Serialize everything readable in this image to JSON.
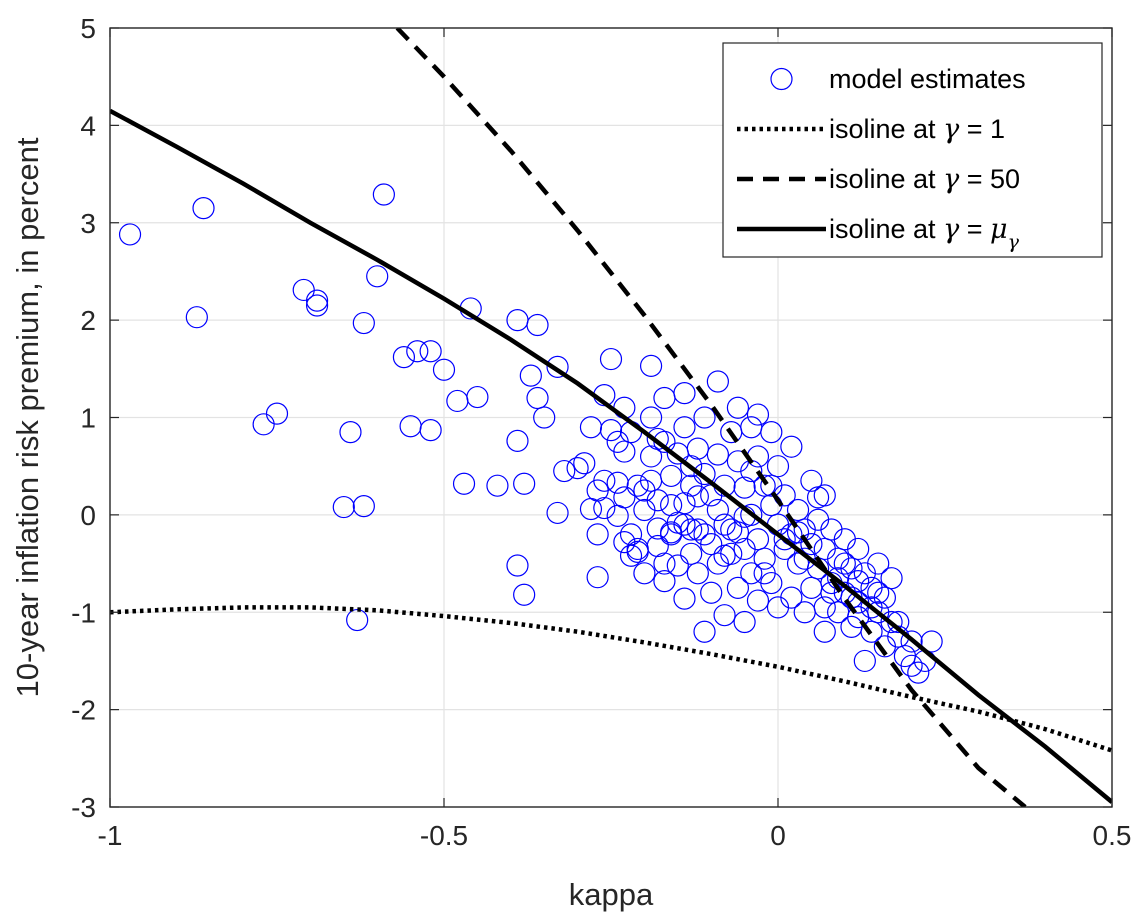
{
  "chart_data": {
    "type": "scatter",
    "title": "",
    "xlabel": "kappa",
    "ylabel": "10-year inflation risk premium, in percent",
    "xlim": [
      -1,
      0.5
    ],
    "ylim": [
      -3,
      5
    ],
    "x_ticks": [
      -1,
      -0.5,
      0,
      0.5
    ],
    "x_tick_labels": [
      "-1",
      "-0.5",
      "0",
      "0.5"
    ],
    "y_ticks": [
      -3,
      -2,
      -1,
      0,
      1,
      2,
      3,
      4,
      5
    ],
    "y_tick_labels": [
      "-3",
      "-2",
      "-1",
      "0",
      "1",
      "2",
      "3",
      "4",
      "5"
    ],
    "grid": true,
    "legend_position": "top-right",
    "colors": {
      "scatter": "#0000ff",
      "lines": "#000000",
      "grid": "#e3e3e3",
      "axis": "#262626"
    },
    "legend": [
      {
        "marker": "circle",
        "text": "model estimates"
      },
      {
        "marker": "dotted-line",
        "text": "isoline at ",
        "math": "γ",
        "suffix": " = 1"
      },
      {
        "marker": "dashed-line",
        "text": "isoline at ",
        "math": "γ",
        "suffix": " = 50"
      },
      {
        "marker": "solid-line",
        "text": "isoline at ",
        "math": "γ",
        "suffix": " = ",
        "math2": "μ",
        "subscript": "γ"
      }
    ],
    "series": [
      {
        "name": "model estimates",
        "type": "scatter",
        "marker": "circle",
        "points": [
          [
            -0.97,
            2.88
          ],
          [
            -0.86,
            3.15
          ],
          [
            -0.87,
            2.03
          ],
          [
            -0.77,
            0.93
          ],
          [
            -0.75,
            1.04
          ],
          [
            -0.71,
            2.31
          ],
          [
            -0.69,
            2.2
          ],
          [
            -0.69,
            2.15
          ],
          [
            -0.65,
            0.08
          ],
          [
            -0.64,
            0.85
          ],
          [
            -0.63,
            -1.08
          ],
          [
            -0.62,
            0.09
          ],
          [
            -0.62,
            1.97
          ],
          [
            -0.6,
            2.45
          ],
          [
            -0.59,
            3.29
          ],
          [
            -0.56,
            1.62
          ],
          [
            -0.55,
            0.91
          ],
          [
            -0.54,
            1.68
          ],
          [
            -0.52,
            1.68
          ],
          [
            -0.52,
            0.87
          ],
          [
            -0.5,
            1.49
          ],
          [
            -0.48,
            1.17
          ],
          [
            -0.47,
            0.32
          ],
          [
            -0.46,
            2.12
          ],
          [
            -0.45,
            1.21
          ],
          [
            -0.42,
            0.3
          ],
          [
            -0.39,
            2.0
          ],
          [
            -0.39,
            0.76
          ],
          [
            -0.39,
            -0.52
          ],
          [
            -0.38,
            -0.82
          ],
          [
            -0.38,
            0.32
          ],
          [
            -0.37,
            1.43
          ],
          [
            -0.36,
            1.95
          ],
          [
            -0.36,
            1.2
          ],
          [
            -0.35,
            1.0
          ],
          [
            -0.33,
            1.52
          ],
          [
            -0.33,
            0.02
          ],
          [
            -0.32,
            0.45
          ],
          [
            -0.3,
            0.48
          ],
          [
            -0.29,
            0.53
          ],
          [
            -0.28,
            0.06
          ],
          [
            -0.28,
            0.9
          ],
          [
            -0.27,
            0.25
          ],
          [
            -0.27,
            -0.64
          ],
          [
            -0.27,
            -0.2
          ],
          [
            -0.26,
            1.23
          ],
          [
            -0.26,
            0.07
          ],
          [
            -0.25,
            0.87
          ],
          [
            -0.25,
            1.6
          ],
          [
            -0.24,
            0.75
          ],
          [
            -0.24,
            0.33
          ],
          [
            -0.24,
            -0.01
          ],
          [
            -0.23,
            1.1
          ],
          [
            -0.23,
            0.65
          ],
          [
            -0.23,
            0.18
          ],
          [
            -0.22,
            0.85
          ],
          [
            -0.22,
            -0.2
          ],
          [
            -0.22,
            -0.42
          ],
          [
            -0.21,
            0.3
          ],
          [
            -0.21,
            -0.38
          ],
          [
            -0.2,
            0.05
          ],
          [
            -0.2,
            0.25
          ],
          [
            -0.2,
            -0.6
          ],
          [
            -0.19,
            1.53
          ],
          [
            -0.19,
            1.0
          ],
          [
            -0.19,
            0.6
          ],
          [
            -0.18,
            0.78
          ],
          [
            -0.18,
            0.15
          ],
          [
            -0.18,
            -0.14
          ],
          [
            -0.18,
            -0.32
          ],
          [
            -0.17,
            1.2
          ],
          [
            -0.17,
            0.75
          ],
          [
            -0.17,
            -0.68
          ],
          [
            -0.16,
            0.4
          ],
          [
            -0.16,
            0.1
          ],
          [
            -0.16,
            -0.2
          ],
          [
            -0.15,
            0.63
          ],
          [
            -0.15,
            -0.52
          ],
          [
            -0.14,
            1.25
          ],
          [
            -0.14,
            0.9
          ],
          [
            -0.14,
            -0.1
          ],
          [
            -0.14,
            -0.86
          ],
          [
            -0.13,
            0.5
          ],
          [
            -0.13,
            0.3
          ],
          [
            -0.13,
            -0.15
          ],
          [
            -0.13,
            -0.4
          ],
          [
            -0.12,
            0.68
          ],
          [
            -0.12,
            0.19
          ],
          [
            -0.12,
            -0.6
          ],
          [
            -0.11,
            1.0
          ],
          [
            -0.11,
            0.42
          ],
          [
            -0.11,
            -0.2
          ],
          [
            -0.11,
            -1.2
          ],
          [
            -0.1,
            0.2
          ],
          [
            -0.1,
            -0.3
          ],
          [
            -0.1,
            -0.8
          ],
          [
            -0.09,
            1.37
          ],
          [
            -0.09,
            0.62
          ],
          [
            -0.09,
            0.05
          ],
          [
            -0.09,
            -0.5
          ],
          [
            -0.08,
            0.3
          ],
          [
            -0.08,
            -0.1
          ],
          [
            -0.08,
            -1.03
          ],
          [
            -0.07,
            0.85
          ],
          [
            -0.07,
            -0.4
          ],
          [
            -0.06,
            1.1
          ],
          [
            -0.06,
            0.55
          ],
          [
            -0.06,
            -0.18
          ],
          [
            -0.06,
            -0.75
          ],
          [
            -0.05,
            0.28
          ],
          [
            -0.05,
            -0.35
          ],
          [
            -0.05,
            -1.1
          ],
          [
            -0.04,
            0.9
          ],
          [
            -0.04,
            0.45
          ],
          [
            -0.04,
            0.0
          ],
          [
            -0.04,
            -0.6
          ],
          [
            -0.03,
            1.03
          ],
          [
            -0.03,
            0.6
          ],
          [
            -0.03,
            -0.25
          ],
          [
            -0.03,
            -0.88
          ],
          [
            -0.02,
            0.3
          ],
          [
            -0.02,
            -0.45
          ],
          [
            -0.01,
            0.85
          ],
          [
            -0.01,
            0.1
          ],
          [
            -0.01,
            -0.7
          ],
          [
            0.0,
            0.5
          ],
          [
            0.0,
            -0.1
          ],
          [
            0.0,
            -0.95
          ],
          [
            0.01,
            0.2
          ],
          [
            0.01,
            -0.35
          ],
          [
            0.02,
            0.7
          ],
          [
            0.02,
            -0.2
          ],
          [
            0.02,
            -0.85
          ],
          [
            0.03,
            0.05
          ],
          [
            0.03,
            -0.5
          ],
          [
            0.04,
            -0.15
          ],
          [
            0.04,
            -1.0
          ],
          [
            0.05,
            0.35
          ],
          [
            0.05,
            -0.3
          ],
          [
            0.05,
            -0.75
          ],
          [
            0.06,
            -0.05
          ],
          [
            0.06,
            -0.55
          ],
          [
            0.07,
            0.2
          ],
          [
            0.07,
            -0.35
          ],
          [
            0.07,
            -1.2
          ],
          [
            0.08,
            -0.15
          ],
          [
            0.08,
            -0.7
          ],
          [
            0.09,
            -0.45
          ],
          [
            0.09,
            -1.0
          ],
          [
            0.1,
            -0.25
          ],
          [
            0.1,
            -0.8
          ],
          [
            0.11,
            -0.55
          ],
          [
            0.11,
            -1.15
          ],
          [
            0.12,
            -0.35
          ],
          [
            0.12,
            -0.9
          ],
          [
            0.13,
            -0.6
          ],
          [
            0.13,
            -1.5
          ],
          [
            0.14,
            -0.75
          ],
          [
            0.14,
            -1.2
          ],
          [
            0.15,
            -0.5
          ],
          [
            0.15,
            -1.0
          ],
          [
            0.16,
            -0.85
          ],
          [
            0.16,
            -1.35
          ],
          [
            0.17,
            -0.65
          ],
          [
            0.17,
            -1.1
          ],
          [
            0.18,
            -1.25
          ],
          [
            0.19,
            -1.45
          ],
          [
            0.2,
            -1.55
          ],
          [
            0.2,
            -1.3
          ],
          [
            0.21,
            -1.62
          ],
          [
            0.22,
            -1.5
          ],
          [
            0.23,
            -1.3
          ],
          [
            -0.17,
            -0.5
          ],
          [
            -0.21,
            -0.35
          ],
          [
            -0.16,
            -0.18
          ],
          [
            -0.12,
            -0.15
          ],
          [
            -0.08,
            -0.42
          ],
          [
            -0.02,
            -0.6
          ],
          [
            0.04,
            -0.45
          ],
          [
            0.08,
            -0.8
          ],
          [
            0.1,
            -0.5
          ],
          [
            0.12,
            -0.68
          ],
          [
            0.06,
            0.18
          ],
          [
            -0.01,
            0.3
          ],
          [
            -0.26,
            0.35
          ],
          [
            -0.19,
            0.35
          ],
          [
            -0.14,
            0.12
          ],
          [
            -0.07,
            -0.15
          ],
          [
            0.03,
            -0.18
          ],
          [
            0.09,
            -0.65
          ],
          [
            0.14,
            -0.95
          ],
          [
            0.18,
            -1.1
          ],
          [
            0.15,
            -0.8
          ],
          [
            0.11,
            -0.85
          ],
          [
            -0.23,
            -0.28
          ],
          [
            -0.15,
            -0.08
          ],
          [
            -0.05,
            -0.02
          ],
          [
            0.01,
            -0.25
          ],
          [
            0.07,
            -0.95
          ],
          [
            0.12,
            -1.05
          ]
        ]
      },
      {
        "name": "isoline at γ = 1",
        "type": "line",
        "style": "dotted",
        "points": [
          [
            -1.0,
            -1.0
          ],
          [
            -0.9,
            -0.97
          ],
          [
            -0.8,
            -0.95
          ],
          [
            -0.7,
            -0.95
          ],
          [
            -0.6,
            -0.98
          ],
          [
            -0.5,
            -1.04
          ],
          [
            -0.4,
            -1.11
          ],
          [
            -0.3,
            -1.2
          ],
          [
            -0.2,
            -1.31
          ],
          [
            -0.1,
            -1.43
          ],
          [
            0.0,
            -1.56
          ],
          [
            0.1,
            -1.71
          ],
          [
            0.2,
            -1.87
          ],
          [
            0.3,
            -2.02
          ],
          [
            0.4,
            -2.2
          ],
          [
            0.5,
            -2.42
          ]
        ]
      },
      {
        "name": "isoline at γ = 50",
        "type": "line",
        "style": "dashed",
        "points": [
          [
            -0.57,
            5.0
          ],
          [
            -0.5,
            4.5
          ],
          [
            -0.4,
            3.74
          ],
          [
            -0.3,
            2.92
          ],
          [
            -0.2,
            2.05
          ],
          [
            -0.1,
            1.13
          ],
          [
            0.0,
            0.15
          ],
          [
            0.1,
            -0.86
          ],
          [
            0.2,
            -1.8
          ],
          [
            0.3,
            -2.6
          ],
          [
            0.37,
            -3.0
          ]
        ]
      },
      {
        "name": "isoline at γ = μγ",
        "type": "line",
        "style": "solid",
        "points": [
          [
            -1.0,
            4.15
          ],
          [
            -0.9,
            3.78
          ],
          [
            -0.8,
            3.4
          ],
          [
            -0.7,
            3.0
          ],
          [
            -0.6,
            2.62
          ],
          [
            -0.5,
            2.22
          ],
          [
            -0.4,
            1.8
          ],
          [
            -0.3,
            1.35
          ],
          [
            -0.2,
            0.85
          ],
          [
            -0.1,
            0.33
          ],
          [
            0.0,
            -0.2
          ],
          [
            0.1,
            -0.73
          ],
          [
            0.2,
            -1.28
          ],
          [
            0.3,
            -1.85
          ],
          [
            0.4,
            -2.38
          ],
          [
            0.5,
            -2.95
          ]
        ]
      }
    ]
  }
}
